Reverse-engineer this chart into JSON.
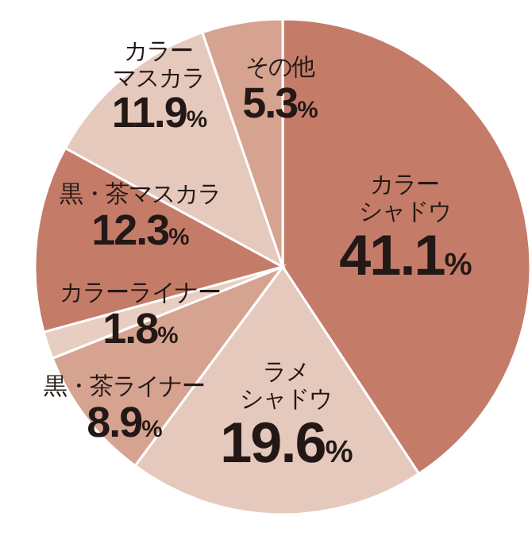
{
  "chart_data": {
    "type": "pie",
    "categories": [
      "カラーシャドウ",
      "ラメシャドウ",
      "黒・茶ライナー",
      "カラーライナー",
      "黒・茶マスカラ",
      "カラーマスカラ",
      "その他"
    ],
    "values": [
      41.1,
      19.6,
      8.9,
      1.8,
      12.3,
      11.9,
      5.3
    ],
    "colors": [
      "#c47c69",
      "#e6c9bd",
      "#d6a391",
      "#e8cdc2",
      "#c47c69",
      "#e6c9bd",
      "#d6a391"
    ],
    "value_labels": [
      "41.1%",
      "19.6%",
      "8.9%",
      "1.8%",
      "12.3%",
      "11.9%",
      "5.3%"
    ]
  }
}
